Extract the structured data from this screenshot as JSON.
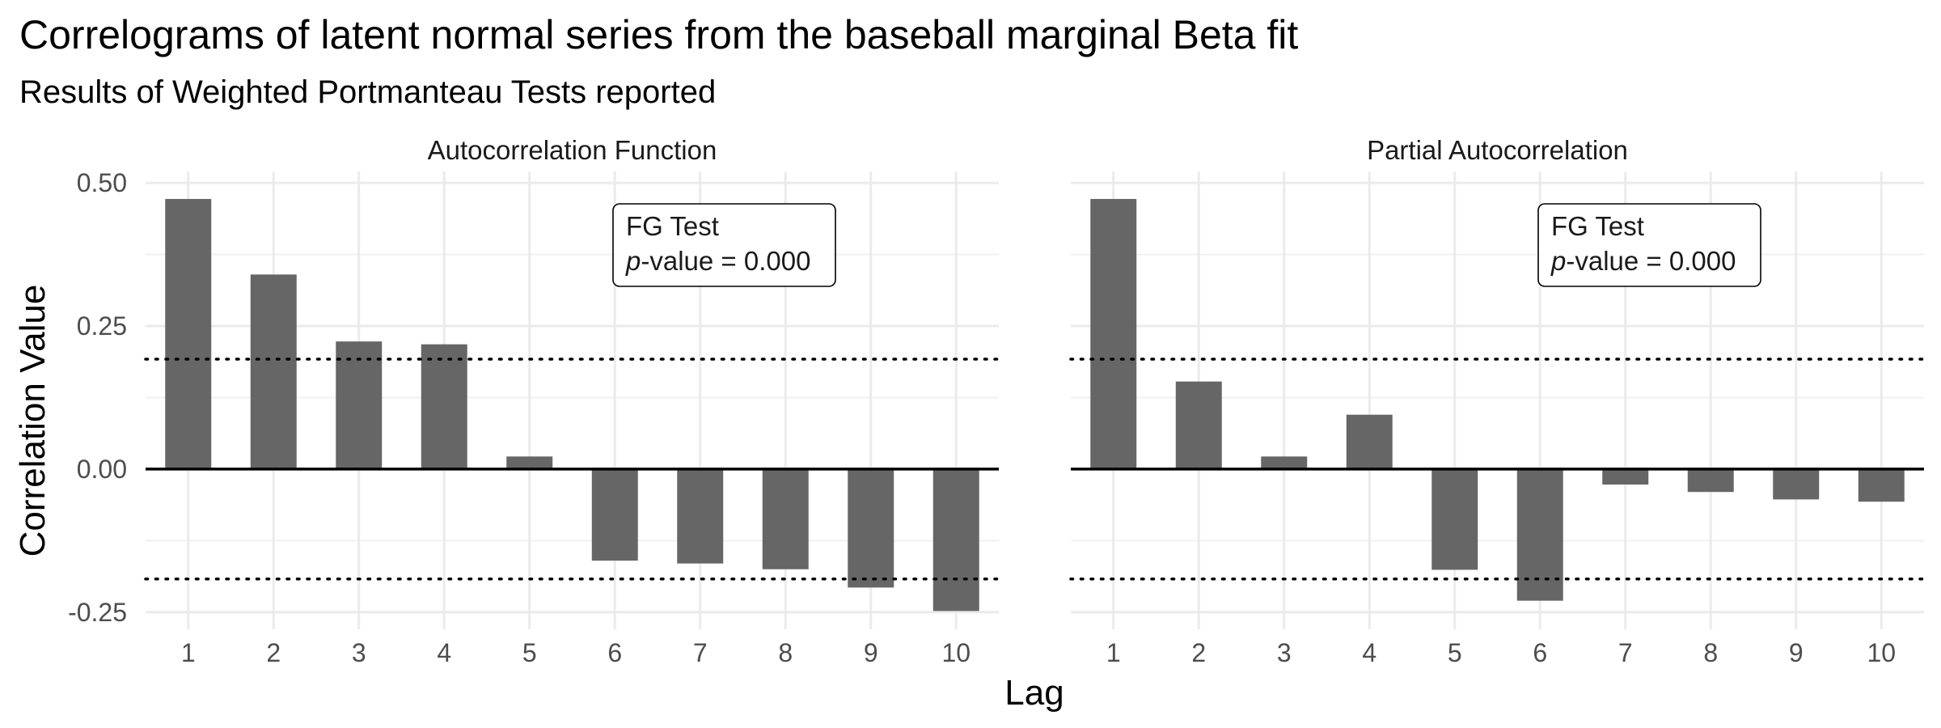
{
  "chart_data": {
    "type": "bar",
    "title": "Correlograms of latent normal series from the baseball marginal Beta fit",
    "subtitle": "Results of Weighted Portmanteau Tests reported",
    "xlabel": "Lag",
    "ylabel": "Correlation Value",
    "ylim": [
      -0.28,
      0.52
    ],
    "y_ticks": [
      "0.50",
      "0.25",
      "0.00",
      "-0.25"
    ],
    "y_tick_values": [
      0.5,
      0.25,
      0.0,
      -0.25
    ],
    "confidence_bound": 0.192,
    "grid": true,
    "bar_color": "#666666",
    "panels": [
      {
        "strip": "Autocorrelation Function",
        "categories": [
          "1",
          "2",
          "3",
          "4",
          "5",
          "6",
          "7",
          "8",
          "9",
          "10"
        ],
        "values": [
          0.472,
          0.34,
          0.223,
          0.218,
          0.022,
          -0.16,
          -0.165,
          -0.175,
          -0.207,
          -0.248
        ],
        "annotation": {
          "line1": "FG Test",
          "p_italic": "p",
          "p_rest": "-value = 0.000"
        }
      },
      {
        "strip": "Partial Autocorrelation",
        "categories": [
          "1",
          "2",
          "3",
          "4",
          "5",
          "6",
          "7",
          "8",
          "9",
          "10"
        ],
        "values": [
          0.472,
          0.153,
          0.022,
          0.095,
          -0.176,
          -0.23,
          -0.027,
          -0.04,
          -0.053,
          -0.057
        ],
        "annotation": {
          "line1": "FG Test",
          "p_italic": "p",
          "p_rest": "-value = 0.000"
        }
      }
    ]
  }
}
